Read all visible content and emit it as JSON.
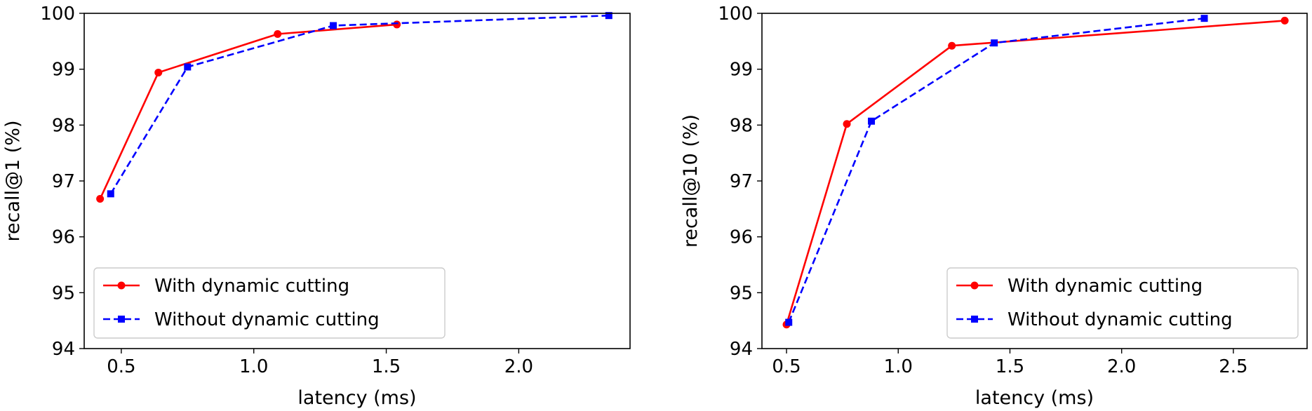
{
  "chart_data": [
    {
      "type": "line",
      "xlabel": "latency (ms)",
      "ylabel": "recall@1 (%)",
      "xlim": [
        0.36,
        2.42
      ],
      "ylim": [
        94,
        100
      ],
      "xticks": [
        0.5,
        1.0,
        1.5,
        2.0
      ],
      "xtick_labels": [
        "0.5",
        "1.0",
        "1.5",
        "2.0"
      ],
      "yticks": [
        94,
        95,
        96,
        97,
        98,
        99,
        100
      ],
      "ytick_labels": [
        "94",
        "95",
        "96",
        "97",
        "98",
        "99",
        "100"
      ],
      "grid": false,
      "legend_position": "lower-left",
      "series": [
        {
          "name": "With dynamic cutting",
          "color": "#ff0000",
          "marker": "circle",
          "line_style": "solid",
          "x": [
            0.42,
            0.64,
            1.09,
            1.54
          ],
          "y": [
            96.68,
            98.94,
            99.63,
            99.8
          ]
        },
        {
          "name": "Without dynamic cutting",
          "color": "#0000ff",
          "marker": "square",
          "line_style": "dashed",
          "x": [
            0.46,
            0.75,
            1.3,
            2.34
          ],
          "y": [
            96.77,
            99.04,
            99.78,
            99.96
          ]
        }
      ]
    },
    {
      "type": "line",
      "xlabel": "latency (ms)",
      "ylabel": "recall@10 (%)",
      "xlim": [
        0.39,
        2.83
      ],
      "ylim": [
        94,
        100
      ],
      "xticks": [
        0.5,
        1.0,
        1.5,
        2.0,
        2.5
      ],
      "xtick_labels": [
        "0.5",
        "1.0",
        "1.5",
        "2.0",
        "2.5"
      ],
      "yticks": [
        94,
        95,
        96,
        97,
        98,
        99,
        100
      ],
      "ytick_labels": [
        "94",
        "95",
        "96",
        "97",
        "98",
        "99",
        "100"
      ],
      "grid": false,
      "legend_position": "lower-right",
      "series": [
        {
          "name": "With dynamic cutting",
          "color": "#ff0000",
          "marker": "circle",
          "line_style": "solid",
          "x": [
            0.5,
            0.77,
            1.24,
            2.73
          ],
          "y": [
            94.43,
            98.02,
            99.42,
            99.87
          ]
        },
        {
          "name": "Without dynamic cutting",
          "color": "#0000ff",
          "marker": "square",
          "line_style": "dashed",
          "x": [
            0.51,
            0.88,
            1.43,
            2.37
          ],
          "y": [
            94.47,
            98.07,
            99.47,
            99.91
          ]
        }
      ]
    }
  ]
}
